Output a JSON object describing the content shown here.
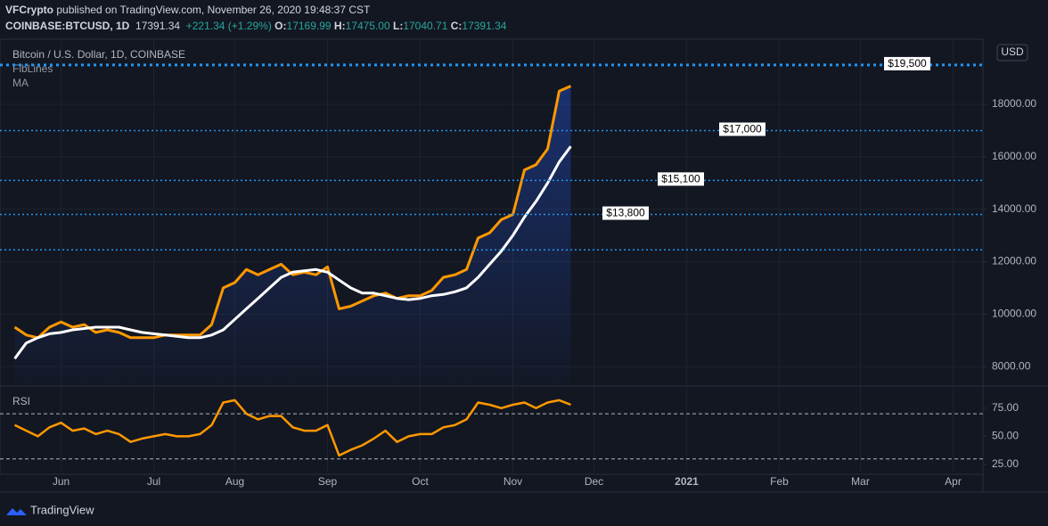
{
  "header": {
    "publisher": "VFCrypto",
    "published": "published on TradingView.com, November 26, 2020 19:48:37 CST",
    "symbol": "COINBASE:BTCUSD, 1D",
    "last": "17391.34",
    "change": "+221.34 (+1.29%)",
    "o_label": "O:",
    "open": "17169.99",
    "h_label": "H:",
    "high": "17475.00",
    "l_label": "L:",
    "low": "17040.71",
    "c_label": "C:",
    "close": "17391.34",
    "brand": "TradingView"
  },
  "chart_data": [
    {
      "type": "line",
      "title": "Bitcoin / U.S. Dollar, 1D, COINBASE",
      "indicators": [
        "FibLines",
        "MA"
      ],
      "currency": "USD",
      "ylim": [
        7290,
        20450
      ],
      "yticks": [
        {
          "value": 8000,
          "label": "8000.00"
        },
        {
          "value": 10000,
          "label": "10000.00"
        },
        {
          "value": 12000,
          "label": "12000.00"
        },
        {
          "value": 14000,
          "label": "14000.00"
        },
        {
          "value": 16000,
          "label": "16000.00"
        },
        {
          "value": 18000,
          "label": "18000.00"
        }
      ],
      "grid": true,
      "hlines": [
        {
          "value": 19500,
          "label": "$19,500"
        },
        {
          "value": 17000,
          "label": "$17,000"
        },
        {
          "value": 15100,
          "label": "$15,100"
        },
        {
          "value": 13800,
          "label": "$13,800"
        },
        12450
      ],
      "hline_color": "#2196f3",
      "series": [
        {
          "name": "Price",
          "color": "#ff9800",
          "values": [
            9500,
            9200,
            9100,
            9500,
            9700,
            9500,
            9600,
            9300,
            9400,
            9300,
            9100,
            9100,
            9100,
            9200,
            9200,
            9200,
            9200,
            9600,
            11000,
            11200,
            11700,
            11500,
            11700,
            11900,
            11500,
            11600,
            11500,
            11800,
            10200,
            10300,
            10500,
            10700,
            10800,
            10600,
            10700,
            10700,
            10900,
            11400,
            11500,
            11700,
            12900,
            13100,
            13600,
            13800,
            15500,
            15700,
            16300,
            18500,
            18700,
            null,
            null,
            null,
            null,
            null,
            null,
            null,
            null,
            null,
            null,
            null,
            null,
            null,
            null,
            null,
            null,
            null,
            null,
            null,
            null,
            null,
            null,
            null,
            null,
            null,
            null,
            null,
            null,
            null,
            null,
            null,
            null,
            null,
            null,
            null
          ]
        },
        {
          "name": "MA",
          "color": "#ffffff",
          "values": [
            8300,
            8900,
            9100,
            9250,
            9300,
            9400,
            9450,
            9500,
            9500,
            9500,
            9400,
            9300,
            9250,
            9200,
            9150,
            9100,
            9100,
            9200,
            9400,
            9800,
            10200,
            10600,
            11000,
            11400,
            11600,
            11650,
            11700,
            11600,
            11300,
            11000,
            10800,
            10800,
            10700,
            10600,
            10550,
            10600,
            10700,
            10750,
            10850,
            11000,
            11400,
            11900,
            12400,
            13000,
            13700,
            14300,
            15000,
            15800,
            16400,
            null,
            null,
            null,
            null,
            null,
            null,
            null,
            null,
            null,
            null,
            null,
            null,
            null,
            null,
            null,
            null,
            null,
            null,
            null,
            null,
            null,
            null,
            null,
            null,
            null,
            null,
            null,
            null,
            null,
            null,
            null,
            null,
            null,
            null,
            null
          ]
        }
      ]
    },
    {
      "type": "line",
      "title": "RSI",
      "categories": [
        null,
        null,
        null,
        null,
        "Jun",
        null,
        null,
        null,
        null,
        null,
        null,
        null,
        "Jul",
        null,
        null,
        null,
        null,
        null,
        null,
        "Aug",
        null,
        null,
        null,
        null,
        null,
        null,
        null,
        "Sep",
        null,
        null,
        null,
        null,
        null,
        null,
        null,
        "Oct",
        null,
        null,
        null,
        null,
        null,
        null,
        null,
        "Nov",
        null,
        null,
        null,
        null,
        null,
        null,
        "Dec",
        null,
        null,
        null,
        null,
        null,
        null,
        null,
        "2021",
        null,
        null,
        null,
        null,
        null,
        null,
        null,
        "Feb",
        null,
        null,
        null,
        null,
        null,
        null,
        "Mar",
        null,
        null,
        null,
        null,
        null,
        null,
        null,
        "Apr",
        null,
        null
      ],
      "ylim": [
        19.5,
        93.8
      ],
      "yticks": [
        {
          "value": 25,
          "label": "25.00"
        },
        {
          "value": 50,
          "label": "50.00"
        },
        {
          "value": 75,
          "label": "75.00"
        }
      ],
      "bands": [
        70,
        30
      ],
      "series": [
        {
          "name": "RSI",
          "color": "#ff9800",
          "values": [
            60,
            55,
            50,
            58,
            62,
            55,
            57,
            52,
            55,
            52,
            45,
            48,
            50,
            52,
            50,
            50,
            52,
            60,
            80,
            82,
            70,
            65,
            68,
            68,
            58,
            55,
            55,
            60,
            33,
            38,
            42,
            48,
            55,
            45,
            50,
            52,
            52,
            58,
            60,
            65,
            80,
            78,
            75,
            78,
            80,
            75,
            80,
            82,
            78,
            null,
            null,
            null,
            null,
            null,
            null,
            null,
            null,
            null,
            null,
            null,
            null,
            null,
            null,
            null,
            null,
            null,
            null,
            null,
            null,
            null,
            null,
            null,
            null,
            null,
            null,
            null,
            null,
            null,
            null,
            null,
            null,
            null,
            null,
            null
          ]
        }
      ]
    }
  ]
}
